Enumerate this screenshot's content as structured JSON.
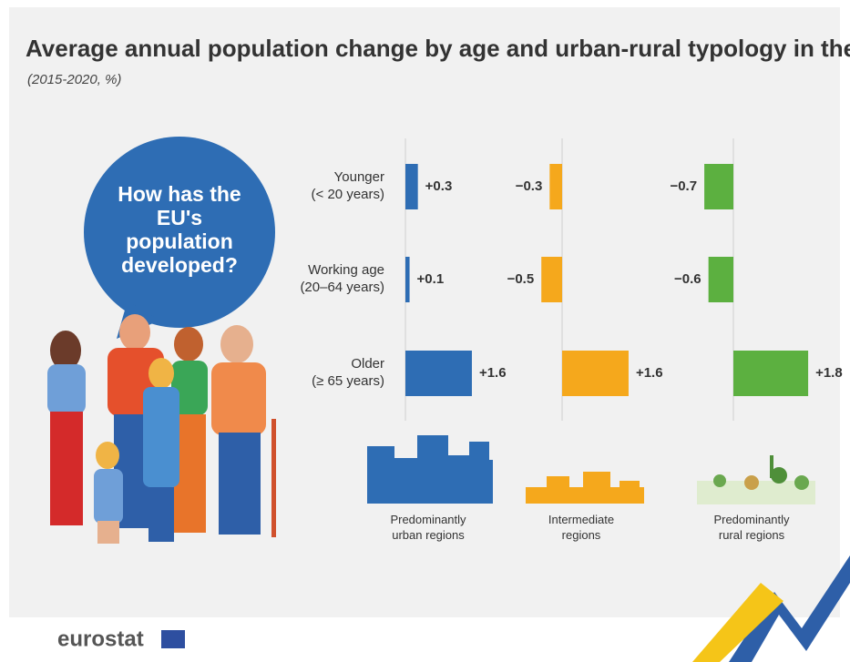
{
  "chart_data": {
    "type": "bar",
    "orientation": "horizontal",
    "title": "Average annual population change by age and urban-rural typology in the EU",
    "subtitle": "(2015-2020, %)",
    "categories": [
      "Younger\n(< 20 years)",
      "Working age\n(20–64 years)",
      "Older\n(≥ 65 years)"
    ],
    "xlim": [
      -1,
      2
    ],
    "series": [
      {
        "name": "Predominantly\nurban regions",
        "color": "#2e6db4",
        "values": [
          0.3,
          0.1,
          1.6
        ],
        "value_labels": [
          "+0.3",
          "+0.1",
          "+1.6"
        ]
      },
      {
        "name": "Intermediate\nregions",
        "color": "#f5a81c",
        "values": [
          -0.3,
          -0.5,
          1.6
        ],
        "value_labels": [
          "−0.3",
          "−0.5",
          "+1.6"
        ]
      },
      {
        "name": "Predominantly\nrural regions",
        "color": "#5cb040",
        "values": [
          -0.7,
          -0.6,
          1.8
        ],
        "value_labels": [
          "−0.7",
          "−0.6",
          "+1.8"
        ]
      }
    ]
  },
  "bubble_text": "How has the EU's population developed?",
  "logo": "eurostat"
}
